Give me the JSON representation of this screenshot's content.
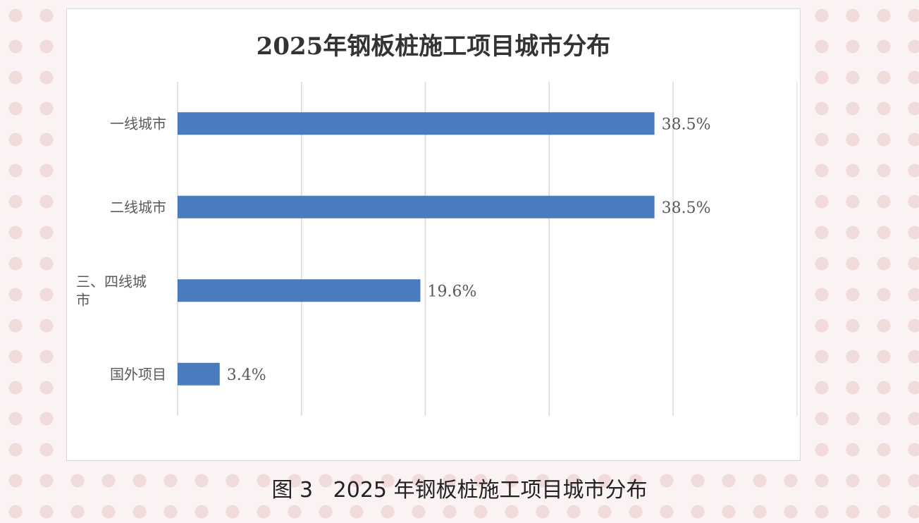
{
  "chart_data": {
    "type": "bar",
    "orientation": "horizontal",
    "title": "2025年钢板桩施工项目城市分布",
    "categories": [
      "一线城市",
      "二线城市",
      "三、四线城市",
      "国外项目"
    ],
    "category_label_lines": [
      [
        "一线城市"
      ],
      [
        "二线城市"
      ],
      [
        "三、四线城",
        "市"
      ],
      [
        "国外项目"
      ]
    ],
    "values": [
      38.5,
      38.5,
      19.6,
      3.4
    ],
    "data_labels": [
      "38.5%",
      "38.5%",
      "19.6%",
      "3.4%"
    ],
    "xlim": [
      0,
      40
    ],
    "grid": true,
    "legend": "none",
    "bar_color": "#4a7bbf"
  },
  "caption": "图 3   2025 年钢板桩施工项目城市分布"
}
